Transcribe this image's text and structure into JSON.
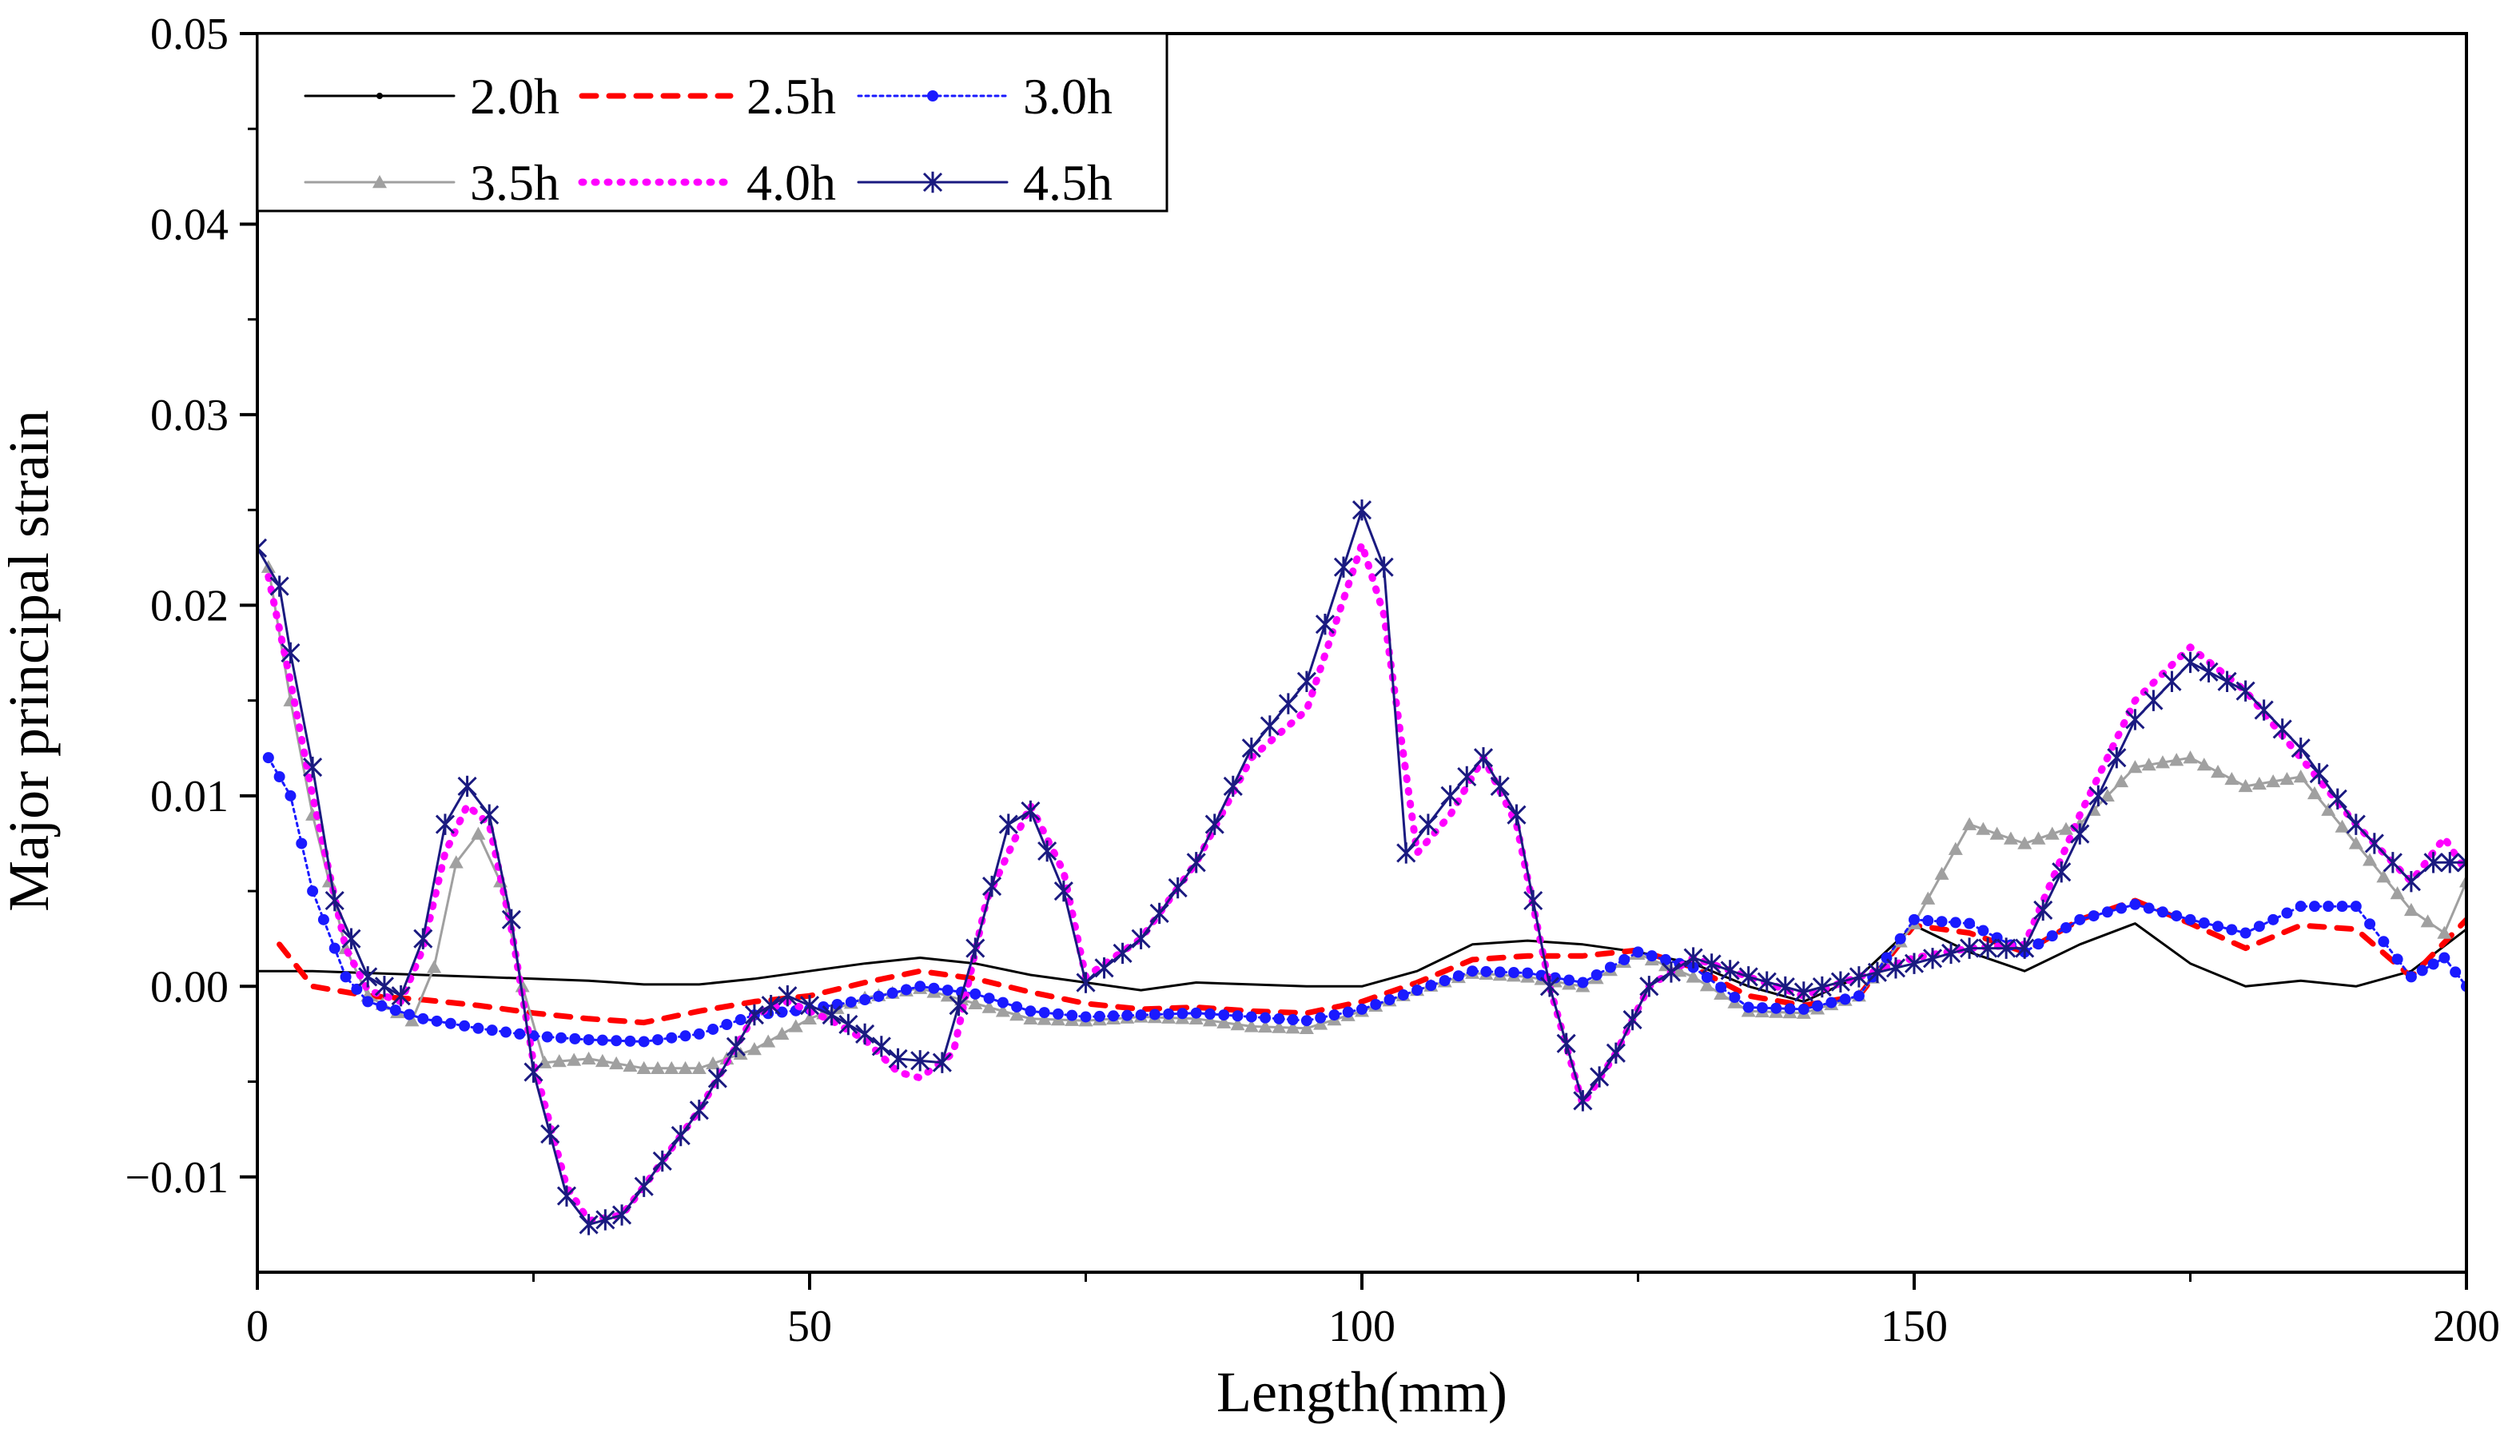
{
  "chart_data": {
    "type": "line",
    "title": "",
    "xlabel": "Length(mm)",
    "ylabel": "Major principal strain",
    "xlim": [
      0,
      200
    ],
    "ylim": [
      -0.015,
      0.05
    ],
    "x_ticks": [
      0,
      50,
      100,
      150,
      200
    ],
    "x_tick_labels": [
      "0",
      "50",
      "100",
      "150",
      "200"
    ],
    "y_ticks": [
      -0.01,
      0.0,
      0.01,
      0.02,
      0.03,
      0.04,
      0.05
    ],
    "y_tick_labels": [
      "−0.01",
      "0.00",
      "0.01",
      "0.02",
      "0.03",
      "0.04",
      "0.05"
    ],
    "legend_position": "top-left",
    "series": [
      {
        "name": "2.0h",
        "color": "#000000",
        "line": "solid",
        "marker": "dot",
        "points": [
          [
            0,
            0.0008
          ],
          [
            5,
            0.0008
          ],
          [
            10,
            0.0007
          ],
          [
            15,
            0.0006
          ],
          [
            20,
            0.0005
          ],
          [
            25,
            0.0004
          ],
          [
            30,
            0.0003
          ],
          [
            35,
            0.0001
          ],
          [
            40,
            0.0001
          ],
          [
            45,
            0.0004
          ],
          [
            50,
            0.0008
          ],
          [
            55,
            0.0012
          ],
          [
            60,
            0.0015
          ],
          [
            65,
            0.0012
          ],
          [
            70,
            0.0006
          ],
          [
            75,
            0.0002
          ],
          [
            80,
            -0.0002
          ],
          [
            85,
            0.0002
          ],
          [
            90,
            0.0001
          ],
          [
            95,
            0.0
          ],
          [
            100,
            0.0
          ],
          [
            105,
            0.0008
          ],
          [
            110,
            0.0022
          ],
          [
            115,
            0.0024
          ],
          [
            120,
            0.0022
          ],
          [
            125,
            0.0018
          ],
          [
            130,
            0.0012
          ],
          [
            135,
            0.0
          ],
          [
            140,
            -0.0008
          ],
          [
            145,
            0.0005
          ],
          [
            150,
            0.0032
          ],
          [
            155,
            0.0018
          ],
          [
            160,
            0.0008
          ],
          [
            165,
            0.0022
          ],
          [
            170,
            0.0033
          ],
          [
            175,
            0.0012
          ],
          [
            180,
            0.0
          ],
          [
            185,
            0.0003
          ],
          [
            190,
            0.0
          ],
          [
            195,
            0.0008
          ],
          [
            200,
            0.003
          ]
        ]
      },
      {
        "name": "2.5h",
        "color": "#ff0000",
        "line": "dash",
        "marker": "none",
        "points": [
          [
            2,
            0.0022
          ],
          [
            5,
            0.0
          ],
          [
            10,
            -0.0005
          ],
          [
            15,
            -0.0007
          ],
          [
            20,
            -0.001
          ],
          [
            25,
            -0.0014
          ],
          [
            30,
            -0.0017
          ],
          [
            35,
            -0.0019
          ],
          [
            40,
            -0.0013
          ],
          [
            45,
            -0.0008
          ],
          [
            50,
            -0.0005
          ],
          [
            55,
            0.0002
          ],
          [
            60,
            0.0008
          ],
          [
            65,
            0.0004
          ],
          [
            70,
            -0.0003
          ],
          [
            75,
            -0.0009
          ],
          [
            80,
            -0.0012
          ],
          [
            85,
            -0.0011
          ],
          [
            90,
            -0.0013
          ],
          [
            95,
            -0.0014
          ],
          [
            100,
            -0.0008
          ],
          [
            105,
            0.0002
          ],
          [
            110,
            0.0014
          ],
          [
            115,
            0.0016
          ],
          [
            120,
            0.0016
          ],
          [
            125,
            0.0019
          ],
          [
            130,
            0.001
          ],
          [
            135,
            -0.0005
          ],
          [
            140,
            -0.001
          ],
          [
            145,
            -0.0005
          ],
          [
            150,
            0.0032
          ],
          [
            155,
            0.0028
          ],
          [
            160,
            0.0018
          ],
          [
            165,
            0.0035
          ],
          [
            170,
            0.0045
          ],
          [
            175,
            0.0033
          ],
          [
            180,
            0.002
          ],
          [
            185,
            0.0032
          ],
          [
            190,
            0.003
          ],
          [
            195,
            0.0005
          ],
          [
            200,
            0.0035
          ]
        ]
      },
      {
        "name": "3.0h",
        "color": "#1a1aff",
        "line": "dot",
        "marker": "circle",
        "points": [
          [
            1,
            0.012
          ],
          [
            3,
            0.01
          ],
          [
            5,
            0.005
          ],
          [
            8,
            0.0005
          ],
          [
            10,
            -0.0008
          ],
          [
            15,
            -0.0017
          ],
          [
            20,
            -0.0022
          ],
          [
            25,
            -0.0026
          ],
          [
            30,
            -0.0028
          ],
          [
            35,
            -0.0029
          ],
          [
            40,
            -0.0025
          ],
          [
            45,
            -0.0015
          ],
          [
            50,
            -0.0012
          ],
          [
            55,
            -0.0007
          ],
          [
            60,
            0.0
          ],
          [
            65,
            -0.0004
          ],
          [
            70,
            -0.0013
          ],
          [
            75,
            -0.0016
          ],
          [
            80,
            -0.0015
          ],
          [
            85,
            -0.0014
          ],
          [
            90,
            -0.0016
          ],
          [
            95,
            -0.0018
          ],
          [
            100,
            -0.0012
          ],
          [
            105,
            -0.0002
          ],
          [
            110,
            0.0008
          ],
          [
            115,
            0.0007
          ],
          [
            120,
            0.0002
          ],
          [
            125,
            0.0018
          ],
          [
            130,
            0.001
          ],
          [
            135,
            -0.0011
          ],
          [
            140,
            -0.0012
          ],
          [
            145,
            -0.0005
          ],
          [
            150,
            0.0035
          ],
          [
            155,
            0.0033
          ],
          [
            160,
            0.0018
          ],
          [
            165,
            0.0035
          ],
          [
            170,
            0.0043
          ],
          [
            175,
            0.0035
          ],
          [
            180,
            0.0028
          ],
          [
            185,
            0.0042
          ],
          [
            190,
            0.0042
          ],
          [
            195,
            0.0005
          ],
          [
            198,
            0.0015
          ],
          [
            200,
            0.0
          ]
        ]
      },
      {
        "name": "3.5h",
        "color": "#a0a0a0",
        "line": "solid",
        "marker": "triangle",
        "points": [
          [
            1,
            0.022
          ],
          [
            3,
            0.015
          ],
          [
            5,
            0.009
          ],
          [
            8,
            0.002
          ],
          [
            10,
            -0.0005
          ],
          [
            14,
            -0.0018
          ],
          [
            16,
            0.001
          ],
          [
            18,
            0.0065
          ],
          [
            20,
            0.008
          ],
          [
            22,
            0.0055
          ],
          [
            24,
            0.0
          ],
          [
            26,
            -0.004
          ],
          [
            30,
            -0.0038
          ],
          [
            35,
            -0.0043
          ],
          [
            40,
            -0.0043
          ],
          [
            45,
            -0.0033
          ],
          [
            50,
            -0.0017
          ],
          [
            55,
            -0.0006
          ],
          [
            60,
            -0.0001
          ],
          [
            65,
            -0.0009
          ],
          [
            70,
            -0.0017
          ],
          [
            75,
            -0.0018
          ],
          [
            80,
            -0.0016
          ],
          [
            85,
            -0.0017
          ],
          [
            90,
            -0.0021
          ],
          [
            95,
            -0.0022
          ],
          [
            100,
            -0.0013
          ],
          [
            105,
            -0.0002
          ],
          [
            110,
            0.0007
          ],
          [
            115,
            0.0005
          ],
          [
            120,
            0.0
          ],
          [
            125,
            0.0017
          ],
          [
            130,
            0.0005
          ],
          [
            135,
            -0.0013
          ],
          [
            140,
            -0.0014
          ],
          [
            145,
            -0.0005
          ],
          [
            150,
            0.0033
          ],
          [
            155,
            0.0085
          ],
          [
            160,
            0.0075
          ],
          [
            165,
            0.0085
          ],
          [
            170,
            0.0115
          ],
          [
            175,
            0.012
          ],
          [
            180,
            0.0105
          ],
          [
            185,
            0.011
          ],
          [
            190,
            0.0075
          ],
          [
            195,
            0.004
          ],
          [
            198,
            0.0028
          ],
          [
            200,
            0.0055
          ]
        ]
      },
      {
        "name": "4.0h",
        "color": "#ff00ff",
        "line": "dot",
        "marker": "none",
        "points": [
          [
            1,
            0.0215
          ],
          [
            3,
            0.016
          ],
          [
            5,
            0.01
          ],
          [
            8,
            0.002
          ],
          [
            10,
            -0.0002
          ],
          [
            13,
            -0.0008
          ],
          [
            15,
            0.002
          ],
          [
            17,
            0.007
          ],
          [
            19,
            0.0095
          ],
          [
            21,
            0.0085
          ],
          [
            23,
            0.003
          ],
          [
            25,
            -0.004
          ],
          [
            28,
            -0.0105
          ],
          [
            30,
            -0.0123
          ],
          [
            33,
            -0.012
          ],
          [
            35,
            -0.0105
          ],
          [
            40,
            -0.0065
          ],
          [
            45,
            -0.0015
          ],
          [
            48,
            -0.0008
          ],
          [
            52,
            -0.0018
          ],
          [
            55,
            -0.0028
          ],
          [
            58,
            -0.0045
          ],
          [
            60,
            -0.0048
          ],
          [
            63,
            -0.0035
          ],
          [
            66,
            0.0045
          ],
          [
            70,
            0.0095
          ],
          [
            73,
            0.006
          ],
          [
            75,
            0.0005
          ],
          [
            80,
            0.0025
          ],
          [
            85,
            0.0065
          ],
          [
            90,
            0.012
          ],
          [
            95,
            0.0145
          ],
          [
            100,
            0.0232
          ],
          [
            102,
            0.0195
          ],
          [
            105,
            0.007
          ],
          [
            108,
            0.009
          ],
          [
            111,
            0.012
          ],
          [
            114,
            0.0085
          ],
          [
            117,
            0.0
          ],
          [
            120,
            -0.0062
          ],
          [
            123,
            -0.0035
          ],
          [
            126,
            0.0
          ],
          [
            130,
            0.0015
          ],
          [
            135,
            0.0005
          ],
          [
            140,
            -0.0005
          ],
          [
            145,
            0.0005
          ],
          [
            150,
            0.0015
          ],
          [
            155,
            0.002
          ],
          [
            160,
            0.0022
          ],
          [
            165,
            0.009
          ],
          [
            170,
            0.015
          ],
          [
            175,
            0.0178
          ],
          [
            180,
            0.0155
          ],
          [
            185,
            0.012
          ],
          [
            190,
            0.0085
          ],
          [
            195,
            0.0055
          ],
          [
            198,
            0.0078
          ],
          [
            200,
            0.006
          ]
        ]
      },
      {
        "name": "4.5h",
        "color": "#1a1a80",
        "line": "solid",
        "marker": "star",
        "points": [
          [
            0,
            0.023
          ],
          [
            2,
            0.021
          ],
          [
            3,
            0.0175
          ],
          [
            5,
            0.0115
          ],
          [
            7,
            0.0045
          ],
          [
            10,
            0.0005
          ],
          [
            13,
            -0.0005
          ],
          [
            15,
            0.0025
          ],
          [
            17,
            0.0085
          ],
          [
            19,
            0.0105
          ],
          [
            21,
            0.009
          ],
          [
            23,
            0.0035
          ],
          [
            25,
            -0.0045
          ],
          [
            28,
            -0.011
          ],
          [
            30,
            -0.0125
          ],
          [
            33,
            -0.012
          ],
          [
            35,
            -0.0105
          ],
          [
            40,
            -0.0065
          ],
          [
            45,
            -0.0015
          ],
          [
            48,
            -0.0005
          ],
          [
            52,
            -0.0015
          ],
          [
            55,
            -0.0025
          ],
          [
            58,
            -0.0038
          ],
          [
            62,
            -0.004
          ],
          [
            65,
            0.002
          ],
          [
            68,
            0.0085
          ],
          [
            70,
            0.0092
          ],
          [
            73,
            0.005
          ],
          [
            75,
            0.0002
          ],
          [
            80,
            0.0025
          ],
          [
            85,
            0.0065
          ],
          [
            90,
            0.0125
          ],
          [
            95,
            0.016
          ],
          [
            100,
            0.025
          ],
          [
            102,
            0.022
          ],
          [
            104,
            0.007
          ],
          [
            108,
            0.01
          ],
          [
            111,
            0.012
          ],
          [
            114,
            0.009
          ],
          [
            117,
            0.0
          ],
          [
            120,
            -0.006
          ],
          [
            123,
            -0.0035
          ],
          [
            126,
            0.0
          ],
          [
            130,
            0.0015
          ],
          [
            135,
            0.0005
          ],
          [
            140,
            -0.0003
          ],
          [
            145,
            0.0005
          ],
          [
            150,
            0.0012
          ],
          [
            155,
            0.002
          ],
          [
            160,
            0.002
          ],
          [
            165,
            0.008
          ],
          [
            170,
            0.014
          ],
          [
            175,
            0.017
          ],
          [
            180,
            0.0155
          ],
          [
            185,
            0.0125
          ],
          [
            190,
            0.0085
          ],
          [
            195,
            0.0055
          ],
          [
            197,
            0.0065
          ],
          [
            200,
            0.0065
          ]
        ]
      }
    ]
  }
}
